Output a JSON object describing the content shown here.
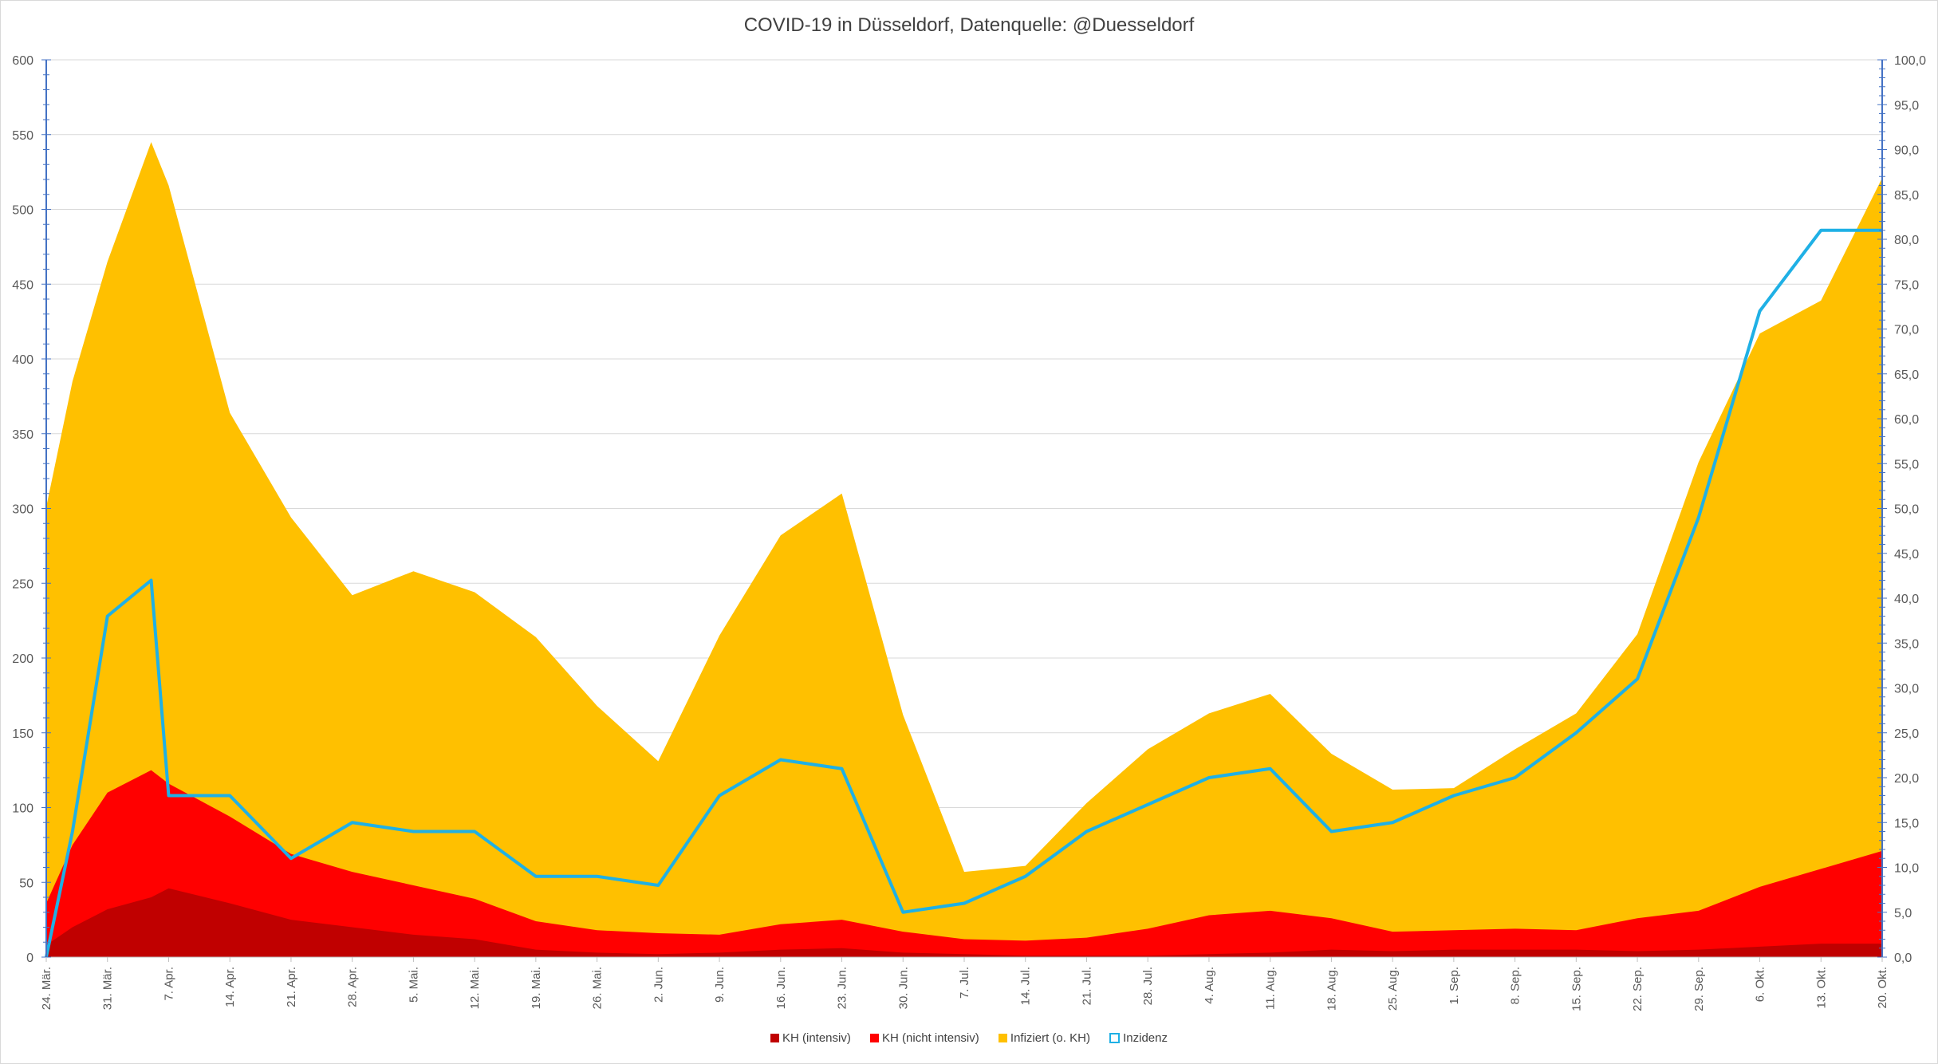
{
  "chart_data": {
    "type": "area",
    "title": "COVID-19 in Düsseldorf, Datenquelle: @Duesseldorf",
    "xlabel": "",
    "ylabel": "",
    "ylim": [
      0,
      600
    ],
    "ylim_right": [
      0,
      100
    ],
    "y_ticks": [
      "0",
      "50",
      "100",
      "150",
      "200",
      "250",
      "300",
      "350",
      "400",
      "450",
      "500",
      "550",
      "600"
    ],
    "y2_ticks": [
      "0,0",
      "5,0",
      "10,0",
      "15,0",
      "20,0",
      "25,0",
      "30,0",
      "35,0",
      "40,0",
      "45,0",
      "50,0",
      "55,0",
      "60,0",
      "65,0",
      "70,0",
      "75,0",
      "80,0",
      "85,0",
      "90,0",
      "95,0",
      "100,0"
    ],
    "x_ticks": [
      "24. Mär.",
      "31. Mär.",
      "7. Apr.",
      "14. Apr.",
      "21. Apr.",
      "28. Apr.",
      "5. Mai.",
      "12. Mai.",
      "19. Mai.",
      "26. Mai.",
      "2. Jun.",
      "9. Jun.",
      "16. Jun.",
      "23. Jun.",
      "30. Jun.",
      "7. Jul.",
      "14. Jul.",
      "21. Jul.",
      "28. Jul.",
      "4. Aug.",
      "11. Aug.",
      "18. Aug.",
      "25. Aug.",
      "1. Sep.",
      "8. Sep.",
      "15. Sep.",
      "22. Sep.",
      "29. Sep.",
      "6. Okt.",
      "13. Okt.",
      "20. Okt."
    ],
    "grid": true,
    "legend_position": "bottom",
    "series": [
      {
        "name": "KH (intensiv)",
        "type": "area",
        "axis": "left",
        "color": "#c00000",
        "x": [
          0,
          3,
          7,
          12,
          14,
          21,
          28,
          35,
          42,
          49,
          56,
          63,
          70,
          77,
          84,
          91,
          98,
          105,
          112,
          119,
          126,
          133,
          140,
          147,
          154,
          161,
          168,
          175,
          182,
          189,
          196,
          203,
          210
        ],
        "values": [
          8,
          20,
          32,
          40,
          46,
          36,
          25,
          20,
          15,
          12,
          5,
          3,
          2,
          3,
          5,
          6,
          3,
          2,
          1,
          1,
          1,
          2,
          3,
          5,
          4,
          5,
          5,
          5,
          4,
          5,
          7,
          9,
          9
        ]
      },
      {
        "name": "KH (nicht intensiv)",
        "type": "area",
        "axis": "left",
        "color": "#ff0000",
        "x": [
          0,
          3,
          7,
          12,
          14,
          21,
          28,
          35,
          42,
          49,
          56,
          63,
          70,
          77,
          84,
          91,
          98,
          105,
          112,
          119,
          126,
          133,
          140,
          147,
          154,
          161,
          168,
          175,
          182,
          189,
          196,
          203,
          210
        ],
        "values": [
          28,
          55,
          78,
          85,
          70,
          58,
          44,
          37,
          33,
          27,
          19,
          15,
          14,
          12,
          17,
          19,
          14,
          10,
          10,
          12,
          18,
          26,
          28,
          21,
          13,
          13,
          14,
          13,
          22,
          26,
          40,
          50,
          62
        ]
      },
      {
        "name": "Infiziert (o. KH)",
        "type": "area",
        "axis": "left",
        "color": "#ffc000",
        "x": [
          0,
          3,
          7,
          12,
          14,
          21,
          28,
          35,
          42,
          49,
          56,
          63,
          70,
          77,
          84,
          91,
          98,
          105,
          112,
          119,
          126,
          133,
          140,
          147,
          154,
          161,
          168,
          175,
          182,
          189,
          196,
          203,
          210
        ],
        "values": [
          265,
          310,
          355,
          420,
          400,
          270,
          225,
          185,
          210,
          205,
          190,
          150,
          115,
          200,
          260,
          285,
          145,
          45,
          50,
          90,
          120,
          135,
          145,
          110,
          95,
          95,
          120,
          145,
          190,
          300,
          370,
          380,
          450
        ]
      },
      {
        "name": "Inzidenz",
        "type": "line",
        "axis": "right",
        "color": "#1fb0e5",
        "x": [
          0,
          3,
          7,
          12,
          14,
          21,
          28,
          35,
          42,
          49,
          56,
          63,
          70,
          77,
          84,
          91,
          98,
          105,
          112,
          119,
          126,
          133,
          140,
          147,
          154,
          161,
          168,
          175,
          182,
          189,
          196,
          203,
          210
        ],
        "values": [
          0,
          14,
          38,
          42,
          18,
          18,
          11,
          15,
          14,
          14,
          9,
          9,
          8,
          18,
          22,
          21,
          5,
          6,
          9,
          14,
          17,
          20,
          21,
          14,
          15,
          18,
          20,
          25,
          31,
          49,
          72,
          81,
          81
        ]
      }
    ]
  },
  "legend": [
    {
      "label": "KH (intensiv)",
      "color": "#c00000",
      "kind": "swatch"
    },
    {
      "label": "KH (nicht intensiv)",
      "color": "#ff0000",
      "kind": "swatch"
    },
    {
      "label": "Infiziert (o. KH)",
      "color": "#ffc000",
      "kind": "swatch"
    },
    {
      "label": "Inzidenz",
      "color": "#1fb0e5",
      "kind": "line"
    }
  ]
}
